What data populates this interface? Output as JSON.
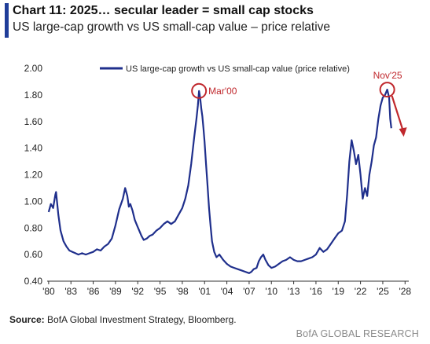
{
  "header": {
    "title": "Chart 11: 2025… secular leader = small cap stocks",
    "subtitle": "US large-cap growth vs US small-cap value – price relative"
  },
  "footer": {
    "source_label": "Source:",
    "source_text": " BofA Global Investment Strategy, Bloomberg.",
    "brand": "BofA GLOBAL RESEARCH"
  },
  "colors": {
    "series": "#1f2f8c",
    "highlight": "#c0282d",
    "accent": "#1f3d99",
    "axis_text": "#222222"
  },
  "chart_data": {
    "type": "line",
    "legend": {
      "position": "top-center",
      "entries": [
        "US large-cap growth vs US small-cap value (price relative)"
      ]
    },
    "grid": false,
    "ylim": [
      0.4,
      2.0
    ],
    "xlim": [
      1979.8,
      2028.5
    ],
    "y_ticks": [
      "0.40",
      "0.60",
      "0.80",
      "1.00",
      "1.20",
      "1.40",
      "1.60",
      "1.80",
      "2.00"
    ],
    "x_ticks": [
      "'80",
      "'83",
      "'86",
      "'89",
      "'92",
      "'95",
      "'98",
      "'01",
      "'04",
      "'07",
      "'10",
      "'13",
      "'16",
      "'19",
      "'22",
      "'25",
      "'28"
    ],
    "series": [
      {
        "name": "US large-cap growth vs US small-cap value (price relative)",
        "x": [
          1980.0,
          1980.3,
          1980.6,
          1980.9,
          1981.0,
          1981.3,
          1981.6,
          1982.0,
          1982.4,
          1982.8,
          1983.2,
          1983.6,
          1984.0,
          1984.5,
          1985.0,
          1985.5,
          1986.0,
          1986.5,
          1987.0,
          1987.5,
          1988.0,
          1988.5,
          1989.0,
          1989.5,
          1990.0,
          1990.3,
          1990.6,
          1990.8,
          1991.0,
          1991.3,
          1991.6,
          1991.9,
          1992.2,
          1992.5,
          1992.8,
          1993.2,
          1993.6,
          1994.0,
          1994.5,
          1995.0,
          1995.5,
          1996.0,
          1996.5,
          1997.0,
          1997.5,
          1998.0,
          1998.4,
          1998.8,
          1999.2,
          1999.6,
          1999.9,
          2000.1,
          2000.25,
          2000.4,
          2000.55,
          2000.7,
          2000.85,
          2001.0,
          2001.2,
          2001.4,
          2001.6,
          2001.8,
          2002.0,
          2002.3,
          2002.6,
          2003.0,
          2003.5,
          2004.0,
          2004.5,
          2005.0,
          2005.5,
          2006.0,
          2006.5,
          2007.0,
          2007.3,
          2007.6,
          2008.0,
          2008.3,
          2008.6,
          2008.9,
          2009.2,
          2009.6,
          2010.0,
          2010.5,
          2011.0,
          2011.5,
          2012.0,
          2012.5,
          2013.0,
          2013.5,
          2014.0,
          2014.5,
          2015.0,
          2015.5,
          2016.0,
          2016.5,
          2017.0,
          2017.5,
          2018.0,
          2018.5,
          2019.0,
          2019.5,
          2019.9,
          2020.2,
          2020.5,
          2020.8,
          2021.1,
          2021.4,
          2021.7,
          2022.0,
          2022.3,
          2022.6,
          2022.9,
          2023.2,
          2023.5,
          2023.8,
          2024.1,
          2024.4,
          2024.7,
          2025.0,
          2025.3,
          2025.6,
          2025.85,
          2026.0,
          2026.15
        ],
        "values": [
          0.92,
          0.98,
          0.95,
          1.05,
          1.07,
          0.9,
          0.78,
          0.7,
          0.66,
          0.63,
          0.62,
          0.61,
          0.6,
          0.61,
          0.6,
          0.61,
          0.62,
          0.64,
          0.63,
          0.66,
          0.68,
          0.72,
          0.82,
          0.94,
          1.02,
          1.1,
          1.04,
          0.96,
          0.98,
          0.93,
          0.86,
          0.82,
          0.78,
          0.74,
          0.71,
          0.72,
          0.74,
          0.75,
          0.78,
          0.8,
          0.83,
          0.85,
          0.83,
          0.85,
          0.9,
          0.95,
          1.02,
          1.12,
          1.28,
          1.48,
          1.62,
          1.72,
          1.83,
          1.78,
          1.7,
          1.64,
          1.55,
          1.45,
          1.28,
          1.12,
          0.95,
          0.82,
          0.7,
          0.62,
          0.58,
          0.6,
          0.56,
          0.53,
          0.51,
          0.5,
          0.49,
          0.48,
          0.47,
          0.46,
          0.47,
          0.49,
          0.5,
          0.55,
          0.58,
          0.6,
          0.56,
          0.52,
          0.5,
          0.51,
          0.53,
          0.55,
          0.56,
          0.58,
          0.56,
          0.55,
          0.55,
          0.56,
          0.57,
          0.58,
          0.6,
          0.65,
          0.62,
          0.64,
          0.68,
          0.72,
          0.76,
          0.78,
          0.85,
          1.05,
          1.3,
          1.46,
          1.38,
          1.28,
          1.35,
          1.2,
          1.02,
          1.1,
          1.04,
          1.2,
          1.3,
          1.42,
          1.48,
          1.62,
          1.72,
          1.78,
          1.8,
          1.84,
          1.78,
          1.62,
          1.55
        ]
      }
    ],
    "annotations": [
      {
        "label": "Mar'00",
        "x": 2000.25,
        "y": 1.83
      },
      {
        "label": "Nov'25",
        "x": 2025.6,
        "y": 1.84
      }
    ]
  }
}
